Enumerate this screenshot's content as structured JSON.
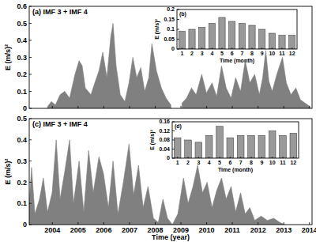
{
  "chart_data": [
    {
      "type": "area",
      "title": "(a) IMF 3 + IMF 4",
      "y_label": "E (m/s)²",
      "color": "#808080",
      "tick_labels": "y",
      "x": [
        2003.81,
        2003.96,
        2004.12,
        2004.3,
        2004.48,
        2004.67,
        2004.88,
        2005.04,
        2005.16,
        2005.28,
        2005.5,
        2005.65,
        2005.81,
        2005.96,
        2006.12,
        2006.27,
        2006.36,
        2006.48,
        2006.64,
        2006.82,
        2006.98,
        2007.13,
        2007.28,
        2007.44,
        2007.59,
        2007.75,
        2007.87,
        2008.05,
        2008.24,
        2008.42,
        2008.61,
        2008.85,
        2009.04,
        2009.22,
        2009.41,
        2009.59,
        2009.81,
        2009.99,
        2010.21,
        2010.39,
        2010.58,
        2010.76,
        2010.95,
        2011.13,
        2011.32,
        2011.5,
        2011.68,
        2011.87,
        2012.05,
        2012.18,
        2012.3,
        2012.42,
        2012.55,
        2012.73,
        2012.95,
        2013.1,
        2013.28,
        2013.47,
        2013.65,
        2013.84,
        2014.02
      ],
      "values": [
        0.01,
        0.04,
        0.02,
        0.08,
        0.1,
        0.06,
        0.2,
        0.28,
        0.25,
        0.12,
        0.08,
        0.15,
        0.22,
        0.33,
        0.18,
        0.42,
        0.5,
        0.25,
        0.08,
        0.04,
        0.15,
        0.3,
        0.18,
        0.24,
        0.1,
        0.18,
        0.38,
        0.22,
        0.12,
        0.06,
        0.02,
        null,
        0.03,
        0.06,
        0.12,
        0.08,
        0.2,
        0.09,
        0.15,
        0.07,
        0.25,
        0.12,
        0.06,
        0.18,
        0.1,
        0.28,
        0.15,
        0.2,
        0.08,
        0.18,
        0.34,
        0.16,
        0.1,
        0.2,
        0.3,
        0.15,
        0.08,
        0.12,
        0.05,
        0.03,
        0.01
      ],
      "xlim": [
        2003.1,
        2014.1
      ],
      "xticks": [
        2004,
        2005,
        2006,
        2007,
        2008,
        2009,
        2010,
        2011,
        2012,
        2013,
        2014
      ],
      "ylim": [
        0,
        0.6
      ],
      "yticks": [
        0,
        0.1,
        0.2,
        0.3,
        0.4,
        0.5,
        0.6
      ]
    },
    {
      "type": "bar",
      "title": "(b)",
      "x_label": "Time (month)",
      "y_label": "E (m/s)²",
      "color": "#999999",
      "categories": [
        "1",
        "2",
        "3",
        "4",
        "5",
        "6",
        "7",
        "8",
        "9",
        "10",
        "11",
        "12"
      ],
      "values": [
        0.09,
        0.1,
        0.11,
        0.13,
        0.16,
        0.14,
        0.13,
        0.12,
        0.1,
        0.08,
        0.07,
        0.07
      ],
      "ylim": [
        0,
        0.2
      ],
      "yticks": [
        0,
        0.05,
        0.1,
        0.15,
        0.2
      ]
    },
    {
      "type": "area",
      "title": "(c) IMF 3 + IMF 4",
      "x_label": "Time (year)",
      "y_label": "E (m/s)²",
      "color": "#808080",
      "x": [
        2003.1,
        2003.19,
        2003.32,
        2003.5,
        2003.65,
        2003.81,
        2003.99,
        2004.15,
        2004.3,
        2004.48,
        2004.67,
        2004.82,
        2005.04,
        2005.22,
        2005.41,
        2005.59,
        2005.81,
        2005.99,
        2006.18,
        2006.36,
        2006.55,
        2006.76,
        2006.98,
        2007.16,
        2007.35,
        2007.53,
        2007.72,
        2007.93,
        2008.12,
        2008.3,
        2008.48,
        2008.67,
        2008.88,
        2009.1,
        2009.28,
        2009.47,
        2009.65,
        2009.84,
        2010.02,
        2010.21,
        2010.39,
        2010.58,
        2010.76,
        2010.95,
        2011.13,
        2011.32,
        2011.5,
        2011.68,
        2011.87,
        2012.12,
        2012.36,
        2012.61,
        2012.85,
        2013.04
      ],
      "values": [
        0.1,
        0.27,
        0.05,
        0.12,
        0.22,
        0.06,
        0.15,
        0.4,
        0.12,
        0.25,
        0.4,
        0.1,
        0.3,
        0.06,
        0.35,
        0.15,
        0.32,
        0.24,
        0.08,
        0.3,
        0.05,
        0.2,
        0.38,
        0.14,
        0.28,
        0.08,
        0.18,
        0.03,
        0.01,
        0.12,
        0.03,
        0.0,
        0.05,
        0.22,
        0.1,
        0.18,
        0.28,
        0.15,
        0.2,
        0.08,
        0.16,
        0.22,
        0.12,
        0.18,
        0.06,
        0.15,
        0.05,
        0.08,
        0.02,
        0.04,
        0.02,
        0.03,
        0.01,
        0.0
      ],
      "xlim": [
        2003.1,
        2014.1
      ],
      "xticks": [
        2004,
        2005,
        2006,
        2007,
        2008,
        2009,
        2010,
        2011,
        2012,
        2013,
        2014
      ],
      "ylim": [
        0,
        0.5
      ],
      "yticks": [
        0,
        0.1,
        0.2,
        0.3,
        0.4,
        0.5
      ]
    },
    {
      "type": "bar",
      "title": "(d)",
      "x_label": "Time (month)",
      "y_label": "E (m/s)²",
      "color": "#999999",
      "categories": [
        "1",
        "2",
        "3",
        "4",
        "5",
        "6",
        "7",
        "8",
        "9",
        "10",
        "11",
        "12"
      ],
      "values": [
        0.09,
        0.08,
        0.07,
        0.1,
        0.14,
        0.09,
        0.1,
        0.1,
        0.1,
        0.12,
        0.1,
        0.11
      ],
      "ylim": [
        0,
        0.16
      ],
      "yticks": [
        0,
        0.04,
        0.08,
        0.12,
        0.16
      ]
    }
  ]
}
